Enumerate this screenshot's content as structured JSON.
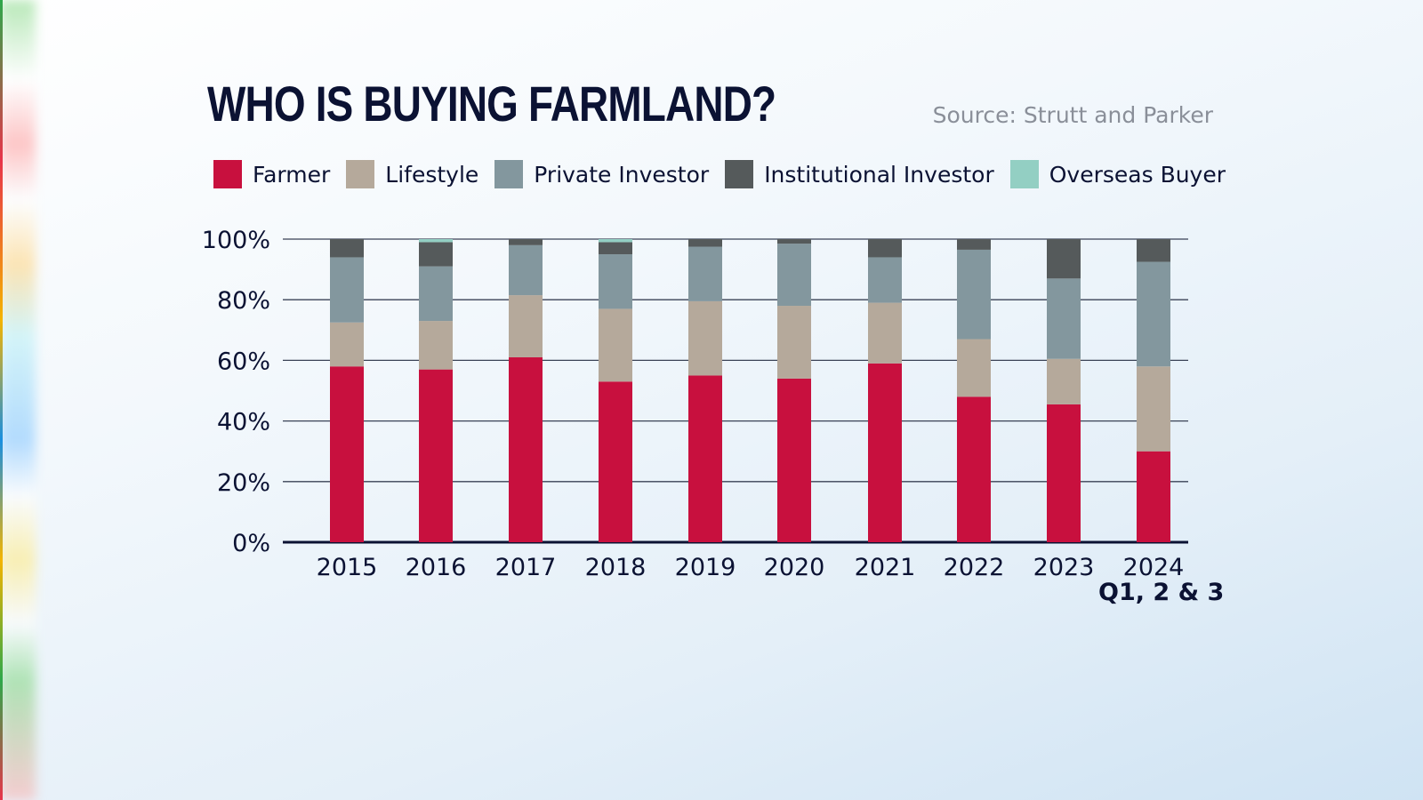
{
  "title": "WHO IS BUYING FARMLAND?",
  "source": "Source: Strutt and Parker",
  "chart_data": {
    "type": "bar",
    "stacked": true,
    "categories": [
      "2015",
      "2016",
      "2017",
      "2018",
      "2019",
      "2020",
      "2021",
      "2022",
      "2023",
      "2024"
    ],
    "last_category_note": "Q1, 2 & 3",
    "ylim": [
      0,
      100
    ],
    "yticks": [
      "0%",
      "20%",
      "40%",
      "60%",
      "80%",
      "100%"
    ],
    "grid": true,
    "legend": "top",
    "series": [
      {
        "name": "Farmer",
        "color": "#c8103e",
        "values": [
          58,
          57,
          61,
          53,
          55,
          54,
          59,
          48,
          45.5,
          30
        ]
      },
      {
        "name": "Lifestyle",
        "color": "#b5a99b",
        "values": [
          14.5,
          16,
          20.5,
          24,
          24.5,
          24,
          20,
          19,
          15,
          28
        ]
      },
      {
        "name": "Private Investor",
        "color": "#83979e",
        "values": [
          21.5,
          18,
          16.5,
          18,
          18,
          20.5,
          15,
          29.5,
          26.5,
          34.5
        ]
      },
      {
        "name": "Institutional Investor",
        "color": "#555a5b",
        "values": [
          6,
          8,
          2,
          4,
          2.5,
          1.5,
          6,
          3.5,
          13,
          7.5
        ]
      },
      {
        "name": "Overseas Buyer",
        "color": "#93cfc3",
        "values": [
          0,
          1,
          0,
          1,
          0,
          0,
          0,
          0,
          0,
          0
        ]
      }
    ]
  }
}
